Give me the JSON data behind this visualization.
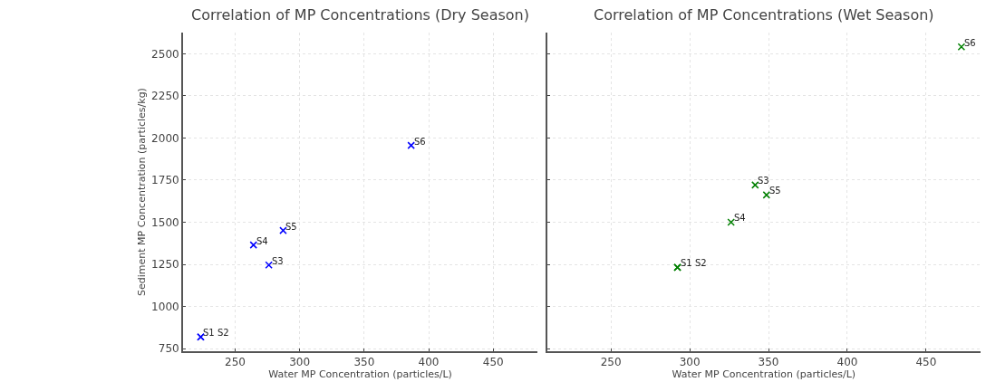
{
  "chart_data": [
    {
      "type": "scatter",
      "title": "Correlation of MP Concentrations (Dry Season)",
      "xlabel": "Water MP Concentration (particles/L)",
      "ylabel": "Sediment MP Concentration (particles/kg)",
      "x": [
        223.3,
        223.3,
        276.1,
        264.2,
        287.2,
        386.4
      ],
      "series": [
        {
          "color": "#0000ff",
          "values": [
            819,
            819,
            1246,
            1365,
            1451,
            1956
          ]
        }
      ],
      "annotations": [
        {
          "text": "S1",
          "x": 223.3,
          "y": 819
        },
        {
          "text": "S2",
          "x": 223.3,
          "y": 819
        },
        {
          "text": "S3",
          "x": 276.1,
          "y": 1246
        },
        {
          "text": "S4",
          "x": 264.2,
          "y": 1365
        },
        {
          "text": "S5",
          "x": 287.2,
          "y": 1451
        },
        {
          "text": "S6",
          "x": 386.4,
          "y": 1956
        }
      ],
      "marker": "cross",
      "grid": true,
      "xlim": [
        209.5,
        484.5
      ],
      "xticks": [
        250,
        300,
        350,
        400,
        450
      ],
      "ylim": [
        734,
        2626
      ],
      "yticks": [
        750,
        1000,
        1250,
        1500,
        1750,
        2000,
        2250,
        2500
      ]
    },
    {
      "type": "scatter",
      "title": "Correlation of MP Concentrations (Wet Season)",
      "xlabel": "Water MP Concentration (particles/L)",
      "x": [
        292.2,
        292.2,
        341.5,
        326.2,
        348.7,
        472.4
      ],
      "series": [
        {
          "color": "#008000",
          "values": [
            1232,
            1232,
            1721,
            1500,
            1662,
            2541
          ]
        }
      ],
      "annotations": [
        {
          "text": "S1",
          "x": 292.2,
          "y": 1232
        },
        {
          "text": "S2",
          "x": 292.2,
          "y": 1232
        },
        {
          "text": "S3",
          "x": 341.5,
          "y": 1721
        },
        {
          "text": "S4",
          "x": 326.2,
          "y": 1500
        },
        {
          "text": "S5",
          "x": 348.7,
          "y": 1662
        },
        {
          "text": "S6",
          "x": 472.4,
          "y": 2541
        }
      ],
      "marker": "cross",
      "grid": true,
      "tick_labels": "x",
      "xlim": [
        209.5,
        484.5
      ],
      "xticks": [
        250,
        300,
        350,
        400,
        450
      ],
      "ylim": [
        734,
        2626
      ],
      "yticks": [
        750,
        1000,
        1250,
        1500,
        1750,
        2000,
        2250,
        2500
      ]
    }
  ]
}
